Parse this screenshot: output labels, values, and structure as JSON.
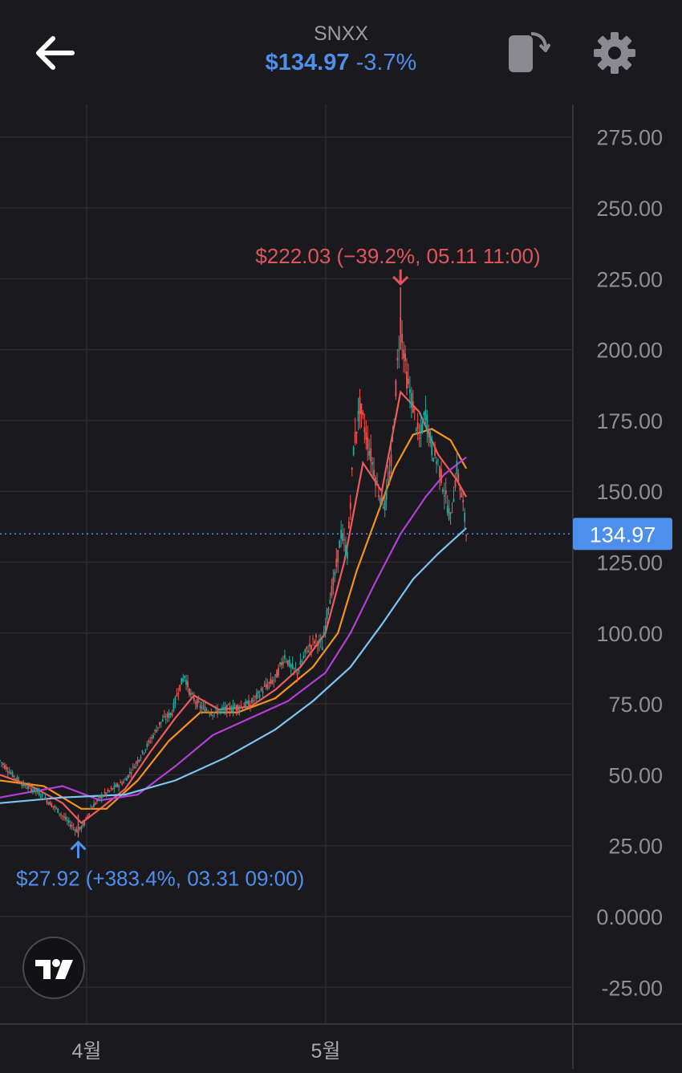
{
  "header": {
    "symbol": "SNXX",
    "price": "$134.97",
    "change": "-3.7%"
  },
  "colors": {
    "background": "#1a191e",
    "accent_blue": "#4d8fea",
    "high_red": "#e0545c",
    "up_candle": "#26a69a",
    "down_candle": "#ef5350",
    "ma_red": "#f05a5a",
    "ma_orange": "#f7931a",
    "ma_purple": "#b43ed6",
    "ma_lightblue": "#7cc4f2"
  },
  "icons": [
    "back-arrow-icon",
    "rotate-screen-icon",
    "gear-icon",
    "tradingview-logo-icon"
  ],
  "chart_data": {
    "type": "candlestick",
    "y_axis_labels": [
      "275.00",
      "250.00",
      "225.00",
      "200.00",
      "175.00",
      "150.00",
      "125.00",
      "100.00",
      "75.00",
      "50.00",
      "25.00",
      "0.0000",
      "-25.00"
    ],
    "ylim": [
      -25,
      275
    ],
    "x_axis_labels": [
      "4월",
      "5월"
    ],
    "current_price": "134.97",
    "high_annotation": "$222.03 (−39.2%, 05.11 11:00)",
    "low_annotation": "$27.92 (+383.4%, 03.31 09:00)",
    "grid": true,
    "price_path": [
      {
        "t": 0,
        "v": 55
      },
      {
        "t": 4,
        "v": 50
      },
      {
        "t": 8,
        "v": 46
      },
      {
        "t": 12,
        "v": 44
      },
      {
        "t": 18,
        "v": 38
      },
      {
        "t": 22,
        "v": 33
      },
      {
        "t": 25,
        "v": 30
      },
      {
        "t": 27,
        "v": 33
      },
      {
        "t": 29,
        "v": 38
      },
      {
        "t": 32,
        "v": 42
      },
      {
        "t": 36,
        "v": 45
      },
      {
        "t": 40,
        "v": 48
      },
      {
        "t": 44,
        "v": 55
      },
      {
        "t": 48,
        "v": 62
      },
      {
        "t": 51,
        "v": 68
      },
      {
        "t": 55,
        "v": 72
      },
      {
        "t": 57,
        "v": 80
      },
      {
        "t": 59,
        "v": 85
      },
      {
        "t": 61,
        "v": 78
      },
      {
        "t": 64,
        "v": 74
      },
      {
        "t": 68,
        "v": 72
      },
      {
        "t": 72,
        "v": 73
      },
      {
        "t": 76,
        "v": 74
      },
      {
        "t": 80,
        "v": 75
      },
      {
        "t": 84,
        "v": 80
      },
      {
        "t": 88,
        "v": 84
      },
      {
        "t": 91,
        "v": 92
      },
      {
        "t": 93,
        "v": 88
      },
      {
        "t": 95,
        "v": 86
      },
      {
        "t": 98,
        "v": 94
      },
      {
        "t": 101,
        "v": 98
      },
      {
        "t": 103,
        "v": 95
      },
      {
        "t": 105,
        "v": 110
      },
      {
        "t": 107,
        "v": 120
      },
      {
        "t": 109,
        "v": 135
      },
      {
        "t": 111,
        "v": 128
      },
      {
        "t": 113,
        "v": 165
      },
      {
        "t": 115,
        "v": 180
      },
      {
        "t": 117,
        "v": 170
      },
      {
        "t": 119,
        "v": 160
      },
      {
        "t": 121,
        "v": 150
      },
      {
        "t": 123,
        "v": 145
      },
      {
        "t": 125,
        "v": 160
      },
      {
        "t": 127,
        "v": 195
      },
      {
        "t": 128,
        "v": 210
      },
      {
        "t": 130,
        "v": 190
      },
      {
        "t": 132,
        "v": 180
      },
      {
        "t": 134,
        "v": 168
      },
      {
        "t": 136,
        "v": 178
      },
      {
        "t": 138,
        "v": 165
      },
      {
        "t": 140,
        "v": 160
      },
      {
        "t": 142,
        "v": 150
      },
      {
        "t": 144,
        "v": 140
      },
      {
        "t": 146,
        "v": 158
      },
      {
        "t": 148,
        "v": 145
      },
      {
        "t": 149,
        "v": 134.97
      }
    ],
    "moving_averages": [
      {
        "color_key": "ma_red",
        "points": [
          {
            "t": 0,
            "v": 50
          },
          {
            "t": 10,
            "v": 46
          },
          {
            "t": 20,
            "v": 40
          },
          {
            "t": 26,
            "v": 33
          },
          {
            "t": 32,
            "v": 38
          },
          {
            "t": 40,
            "v": 45
          },
          {
            "t": 48,
            "v": 58
          },
          {
            "t": 56,
            "v": 70
          },
          {
            "t": 62,
            "v": 78
          },
          {
            "t": 70,
            "v": 73
          },
          {
            "t": 80,
            "v": 74
          },
          {
            "t": 88,
            "v": 80
          },
          {
            "t": 96,
            "v": 88
          },
          {
            "t": 104,
            "v": 100
          },
          {
            "t": 110,
            "v": 125
          },
          {
            "t": 116,
            "v": 160
          },
          {
            "t": 122,
            "v": 150
          },
          {
            "t": 128,
            "v": 185
          },
          {
            "t": 134,
            "v": 178
          },
          {
            "t": 140,
            "v": 163
          },
          {
            "t": 146,
            "v": 154
          },
          {
            "t": 149,
            "v": 148
          }
        ]
      },
      {
        "color_key": "ma_orange",
        "points": [
          {
            "t": 0,
            "v": 48
          },
          {
            "t": 14,
            "v": 46
          },
          {
            "t": 26,
            "v": 38
          },
          {
            "t": 34,
            "v": 38
          },
          {
            "t": 44,
            "v": 48
          },
          {
            "t": 54,
            "v": 62
          },
          {
            "t": 64,
            "v": 72
          },
          {
            "t": 76,
            "v": 72
          },
          {
            "t": 88,
            "v": 77
          },
          {
            "t": 100,
            "v": 88
          },
          {
            "t": 108,
            "v": 100
          },
          {
            "t": 114,
            "v": 122
          },
          {
            "t": 120,
            "v": 140
          },
          {
            "t": 126,
            "v": 158
          },
          {
            "t": 132,
            "v": 170
          },
          {
            "t": 138,
            "v": 172
          },
          {
            "t": 144,
            "v": 168
          },
          {
            "t": 149,
            "v": 158
          }
        ]
      },
      {
        "color_key": "ma_purple",
        "points": [
          {
            "t": 0,
            "v": 42
          },
          {
            "t": 20,
            "v": 46
          },
          {
            "t": 32,
            "v": 41
          },
          {
            "t": 44,
            "v": 43
          },
          {
            "t": 56,
            "v": 53
          },
          {
            "t": 68,
            "v": 64
          },
          {
            "t": 80,
            "v": 70
          },
          {
            "t": 92,
            "v": 76
          },
          {
            "t": 104,
            "v": 86
          },
          {
            "t": 112,
            "v": 100
          },
          {
            "t": 120,
            "v": 118
          },
          {
            "t": 128,
            "v": 135
          },
          {
            "t": 136,
            "v": 148
          },
          {
            "t": 142,
            "v": 156
          },
          {
            "t": 149,
            "v": 162
          }
        ]
      },
      {
        "color_key": "ma_lightblue",
        "points": [
          {
            "t": 0,
            "v": 40
          },
          {
            "t": 20,
            "v": 42
          },
          {
            "t": 40,
            "v": 43
          },
          {
            "t": 56,
            "v": 48
          },
          {
            "t": 72,
            "v": 56
          },
          {
            "t": 88,
            "v": 66
          },
          {
            "t": 100,
            "v": 76
          },
          {
            "t": 112,
            "v": 88
          },
          {
            "t": 122,
            "v": 103
          },
          {
            "t": 132,
            "v": 119
          },
          {
            "t": 140,
            "v": 128
          },
          {
            "t": 149,
            "v": 137
          }
        ]
      }
    ]
  }
}
